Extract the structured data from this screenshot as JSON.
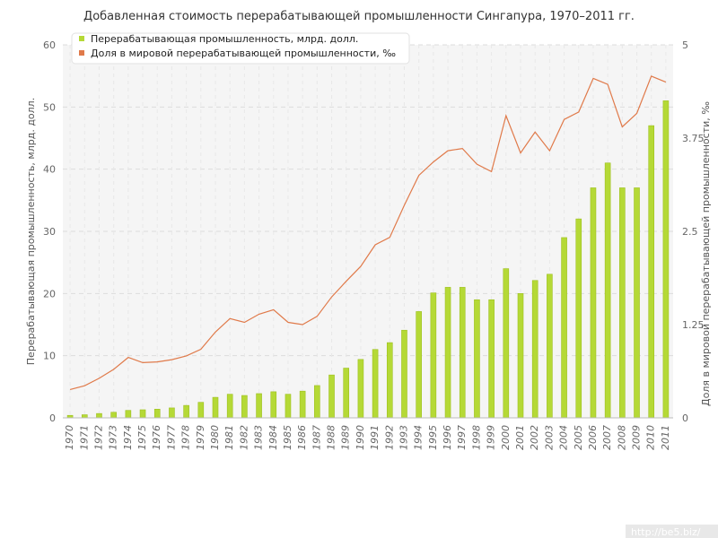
{
  "chart_data": {
    "type": "bar",
    "title": "Добавленная стоимость перерабатывающей промышленности Сингапура, 1970–2011 гг.",
    "categories": [
      "1970",
      "1971",
      "1972",
      "1973",
      "1974",
      "1975",
      "1976",
      "1977",
      "1978",
      "1979",
      "1980",
      "1981",
      "1982",
      "1983",
      "1984",
      "1985",
      "1986",
      "1987",
      "1988",
      "1989",
      "1990",
      "1991",
      "1992",
      "1993",
      "1994",
      "1995",
      "1996",
      "1997",
      "1998",
      "1999",
      "2000",
      "2001",
      "2002",
      "2003",
      "2004",
      "2005",
      "2006",
      "2007",
      "2008",
      "2009",
      "2010",
      "2011"
    ],
    "series": [
      {
        "name": "Перерабатывающая промышленность, млрд. долл.",
        "type": "bar",
        "axis": "left",
        "color": "#b5d936",
        "values": [
          0.4,
          0.5,
          0.7,
          0.9,
          1.2,
          1.3,
          1.4,
          1.6,
          2.0,
          2.5,
          3.3,
          3.8,
          3.6,
          3.9,
          4.2,
          3.8,
          4.3,
          5.2,
          6.9,
          8.0,
          9.4,
          11.0,
          12.1,
          14.1,
          17.1,
          20.1,
          21.0,
          21.0,
          19.0,
          19.0,
          24.0,
          20.0,
          22.1,
          23.1,
          29.0,
          32.0,
          37.0,
          41.0,
          37.0,
          37.0,
          47.0,
          51.0
        ]
      },
      {
        "name": "Доля в мировой перерабатывающей промышленности, ‰",
        "type": "line",
        "axis": "right",
        "color": "#e07a4a",
        "values": [
          0.38,
          0.43,
          0.53,
          0.65,
          0.81,
          0.74,
          0.75,
          0.78,
          0.83,
          0.92,
          1.15,
          1.33,
          1.28,
          1.39,
          1.45,
          1.28,
          1.25,
          1.36,
          1.62,
          1.83,
          2.03,
          2.32,
          2.42,
          2.85,
          3.25,
          3.43,
          3.58,
          3.61,
          3.4,
          3.3,
          4.05,
          3.55,
          3.83,
          3.58,
          4.0,
          4.1,
          4.55,
          4.47,
          3.9,
          4.08,
          4.58,
          4.5
        ]
      }
    ],
    "ylabel": "Перерабатывающая промышленность, млрд. долл.",
    "y2label": "Доля в мировой перерабатывающей промышленности, ‰",
    "ylim": [
      0,
      60
    ],
    "yticks": [
      0,
      10,
      20,
      30,
      40,
      50,
      60
    ],
    "y2lim": [
      0,
      5
    ],
    "y2ticks": [
      "0",
      "1.25",
      "2.5",
      "3.75",
      "5"
    ],
    "grid": true,
    "legend_position": "top-left"
  },
  "watermark": "http://be5.biz/"
}
